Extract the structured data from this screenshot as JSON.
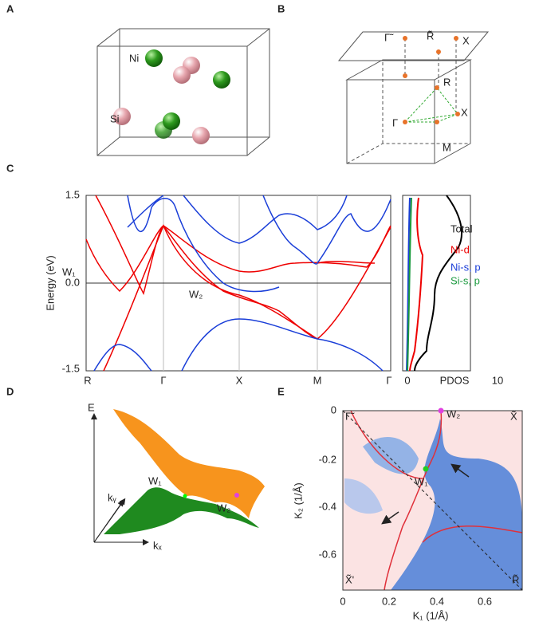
{
  "panels": {
    "A": {
      "label": "A",
      "atoms": [
        "Ni",
        "Si"
      ]
    },
    "B": {
      "label": "B",
      "points": [
        "Γ̃",
        "R̃",
        "X",
        "R",
        "X",
        "Γ",
        "M"
      ]
    },
    "C": {
      "label": "C",
      "y_label": "Energy (eV)",
      "yticks": [
        "1.5",
        "0.0",
        "-1.5"
      ],
      "kpath": [
        "R",
        "Γ",
        "X",
        "M",
        "Γ"
      ],
      "weyl": [
        "W₁",
        "W₂"
      ],
      "pdos_xticks": [
        "0",
        "10"
      ],
      "pdos_label": "PDOS",
      "legend": [
        "Total",
        "Ni-d",
        "Ni-s, p",
        "Si-s, p"
      ]
    },
    "D": {
      "label": "D",
      "axes": [
        "E",
        "kᵧ",
        "kₓ"
      ],
      "weyl": [
        "W₁",
        "W₂"
      ]
    },
    "E": {
      "label": "E",
      "y_label": "K₂ (1/Å)",
      "x_label": "K₁ (1/Å)",
      "yticks": [
        "0",
        "-0.2",
        "-0.4",
        "-0.6"
      ],
      "xticks": [
        "0",
        "0.2",
        "0.4",
        "0.6"
      ],
      "corners": [
        "Γ̃",
        "X̃",
        "X̃'",
        "R̃"
      ],
      "weyl": [
        "W₁",
        "W₂"
      ]
    }
  }
}
